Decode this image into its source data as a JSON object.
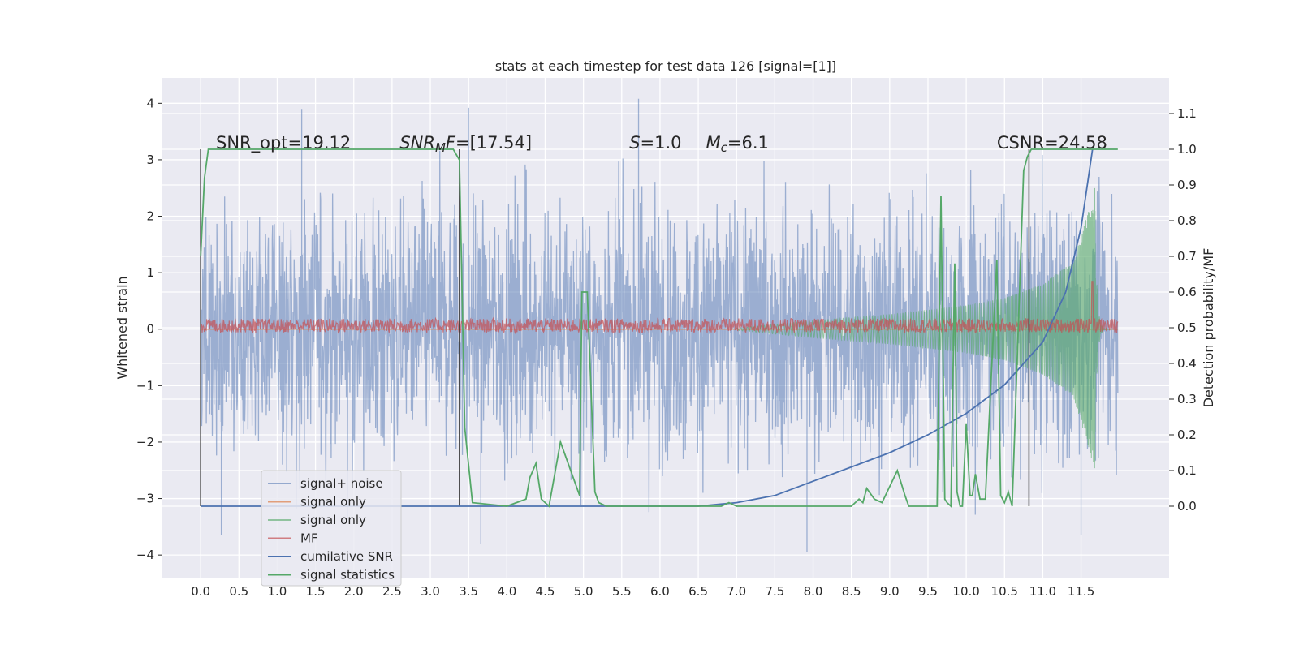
{
  "chart_data": {
    "type": "line",
    "title": "stats at each timestep for test data 126 [signal=[1]]",
    "xlabel": "",
    "ylabel": "Whitened strain",
    "y2label": "Detection probability/MF",
    "xlim": [
      -0.5,
      12.65
    ],
    "ylim": [
      -4.4,
      4.45
    ],
    "y2lim": [
      -0.2,
      1.2
    ],
    "xticks": [
      0.0,
      0.5,
      1.0,
      1.5,
      2.0,
      2.5,
      3.0,
      3.5,
      4.0,
      4.5,
      5.0,
      5.5,
      6.0,
      6.5,
      7.0,
      7.5,
      8.0,
      8.5,
      9.0,
      9.5,
      10.0,
      10.5,
      11.0,
      11.5
    ],
    "xtick_labels": [
      "0.0",
      "0.5",
      "1.0",
      "1.5",
      "2.0",
      "2.5",
      "3.0",
      "3.5",
      "4.0",
      "4.5",
      "5.0",
      "5.5",
      "6.0",
      "6.5",
      "7.0",
      "7.5",
      "8.0",
      "8.5",
      "9.0",
      "9.5",
      "10.0",
      "10.5",
      "11.0",
      "11.5"
    ],
    "yticks": [
      -4,
      -3,
      -2,
      -1,
      0,
      1,
      2,
      3,
      4
    ],
    "ytick_labels": [
      "−4",
      "−3",
      "−2",
      "−1",
      "0",
      "1",
      "2",
      "3",
      "4"
    ],
    "y2ticks": [
      0.0,
      0.1,
      0.2,
      0.3,
      0.4,
      0.5,
      0.6,
      0.7,
      0.8,
      0.9,
      1.0,
      1.1
    ],
    "y2tick_labels": [
      "0.0",
      "0.1",
      "0.2",
      "0.3",
      "0.4",
      "0.5",
      "0.6",
      "0.7",
      "0.8",
      "0.9",
      "1.0",
      "1.1"
    ],
    "grid": true,
    "legend_position": "lower-left",
    "annotations": [
      {
        "name": "snr-opt",
        "text": "SNR_opt=19.12",
        "x": 0.2,
        "y": 3.2
      },
      {
        "name": "snr-mf",
        "text": "SNR",
        "sub": "M",
        "tail": "F=[17.54]",
        "x": 2.6,
        "y": 3.2
      },
      {
        "name": "s-value",
        "text": "S",
        "tail": "=1.0",
        "x": 5.6,
        "y": 3.2
      },
      {
        "name": "chirp-mass",
        "text": "M",
        "sub": "c",
        "tail": "=6.1",
        "x": 6.6,
        "y": 3.2
      },
      {
        "name": "csnr",
        "text": "CSNR=24.58",
        "x": 10.4,
        "y": 3.2
      }
    ],
    "vertical_lines": [
      0.0,
      3.38,
      10.82
    ],
    "series": [
      {
        "name": "signal+ noise",
        "color": "#4c72b0",
        "axis": "left",
        "style": "noise",
        "x_range": [
          0.0,
          11.98
        ],
        "amplitude_sigma": 1.1,
        "extremes": [
          {
            "x": 1.32,
            "y": 3.9
          },
          {
            "x": 3.5,
            "y": 3.92
          },
          {
            "x": 5.72,
            "y": 4.08
          },
          {
            "x": 0.27,
            "y": -3.65
          },
          {
            "x": 3.66,
            "y": -3.8
          },
          {
            "x": 7.92,
            "y": -3.95
          },
          {
            "x": 11.5,
            "y": -3.65
          }
        ]
      },
      {
        "name": "signal only",
        "color": "#dd8452",
        "axis": "left",
        "style": "flat",
        "value": 0.0
      },
      {
        "name": "signal only",
        "color": "#55a868",
        "axis": "left",
        "style": "chirp",
        "t_merge": 11.68,
        "envelope": [
          {
            "x": 7.0,
            "y": 0.02
          },
          {
            "x": 8.0,
            "y": 0.15
          },
          {
            "x": 9.0,
            "y": 0.26
          },
          {
            "x": 10.0,
            "y": 0.42
          },
          {
            "x": 10.5,
            "y": 0.55
          },
          {
            "x": 11.0,
            "y": 0.8
          },
          {
            "x": 11.4,
            "y": 1.2
          },
          {
            "x": 11.6,
            "y": 2.1
          },
          {
            "x": 11.68,
            "y": 2.5
          }
        ]
      },
      {
        "name": "MF",
        "color": "#c44e52",
        "axis": "right",
        "style": "band",
        "x_range": [
          0.0,
          11.98
        ],
        "base": 0.5,
        "spread": 0.02,
        "spike": {
          "x": 11.65,
          "y": 0.63
        }
      },
      {
        "name": "cumilative SNR",
        "color": "#4c72b0",
        "axis": "right",
        "x": [
          0.0,
          5.0,
          6.5,
          7.0,
          7.5,
          8.0,
          8.5,
          9.0,
          9.5,
          10.0,
          10.5,
          11.0,
          11.3,
          11.5,
          11.65
        ],
        "y": [
          0.0,
          0.0,
          0.0,
          0.01,
          0.03,
          0.07,
          0.11,
          0.15,
          0.2,
          0.26,
          0.34,
          0.46,
          0.6,
          0.78,
          1.0
        ]
      },
      {
        "name": "signal statistics",
        "color": "#55a868",
        "axis": "right",
        "x": [
          0.0,
          0.05,
          0.1,
          3.3,
          3.38,
          3.45,
          3.55,
          4.0,
          4.25,
          4.3,
          4.38,
          4.45,
          4.55,
          4.7,
          4.8,
          4.95,
          4.98,
          5.0,
          5.05,
          5.15,
          5.2,
          5.3,
          6.5,
          6.8,
          6.9,
          7.0,
          8.5,
          8.6,
          8.65,
          8.7,
          8.8,
          8.9,
          9.1,
          9.2,
          9.25,
          9.3,
          9.5,
          9.62,
          9.67,
          9.72,
          9.75,
          9.8,
          9.85,
          9.88,
          9.92,
          9.95,
          10.0,
          10.05,
          10.08,
          10.12,
          10.18,
          10.25,
          10.4,
          10.45,
          10.5,
          10.55,
          10.6,
          10.75,
          10.8,
          10.85,
          10.9,
          11.0,
          11.5,
          11.98
        ],
        "y": [
          0.7,
          0.92,
          1.0,
          1.0,
          0.97,
          0.22,
          0.01,
          0.0,
          0.02,
          0.08,
          0.12,
          0.02,
          0.0,
          0.18,
          0.12,
          0.03,
          0.6,
          0.6,
          0.6,
          0.04,
          0.01,
          0.0,
          0.0,
          0.0,
          0.01,
          0.0,
          0.0,
          0.02,
          0.01,
          0.05,
          0.02,
          0.01,
          0.1,
          0.03,
          0.0,
          0.0,
          0.0,
          0.0,
          0.87,
          0.02,
          0.01,
          0.0,
          0.68,
          0.04,
          0.0,
          0.0,
          0.23,
          0.03,
          0.03,
          0.09,
          0.02,
          0.02,
          0.69,
          0.03,
          0.01,
          0.04,
          0.0,
          0.94,
          0.98,
          1.0,
          1.0,
          1.0,
          1.0,
          1.0
        ]
      }
    ]
  },
  "legend": {
    "items": [
      {
        "label": "signal+ noise",
        "color": "#4c72b0",
        "alpha": 0.55
      },
      {
        "label": "signal only",
        "color": "#dd8452",
        "alpha": 0.75
      },
      {
        "label": "signal only",
        "color": "#55a868",
        "alpha": 0.6
      },
      {
        "label": "MF",
        "color": "#c44e52",
        "alpha": 0.7
      },
      {
        "label": "cumilative SNR",
        "color": "#4c72b0",
        "alpha": 1.0
      },
      {
        "label": "signal statistics",
        "color": "#55a868",
        "alpha": 1.0
      }
    ]
  }
}
